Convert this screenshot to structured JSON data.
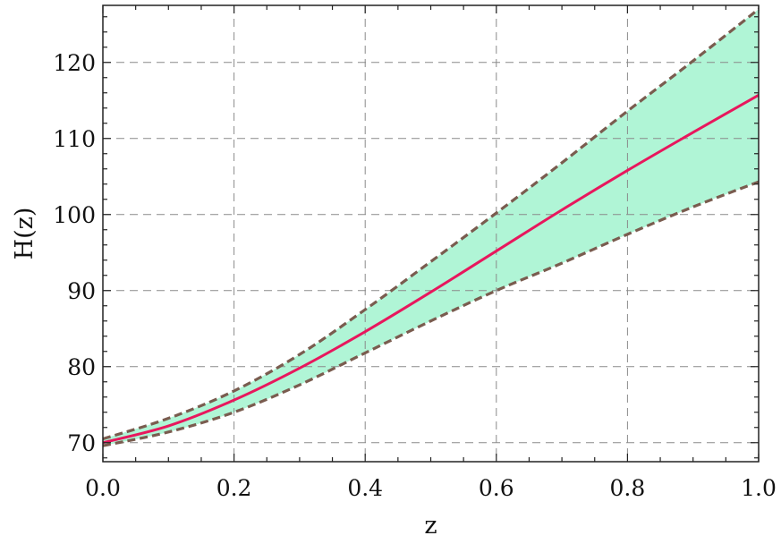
{
  "chart_data": {
    "type": "line",
    "title": "",
    "xlabel": "z",
    "ylabel": "H(z)",
    "xlim": [
      0.0,
      1.0
    ],
    "ylim": [
      67.5,
      127.5
    ],
    "xticks": [
      0.0,
      0.2,
      0.4,
      0.6,
      0.8,
      1.0
    ],
    "xtick_labels": [
      "0.0",
      "0.2",
      "0.4",
      "0.6",
      "0.8",
      "1.0"
    ],
    "yticks": [
      70,
      80,
      90,
      100,
      110,
      120
    ],
    "ytick_labels": [
      "70",
      "80",
      "90",
      "100",
      "110",
      "120"
    ],
    "grid": true,
    "legend": "none",
    "x": [
      0.0,
      0.1,
      0.2,
      0.3,
      0.4,
      0.5,
      0.6,
      0.7,
      0.8,
      0.9,
      1.0
    ],
    "series": [
      {
        "role": "best-fit",
        "style": "solid",
        "color": "#e8175d",
        "values": [
          70.0,
          72.2,
          75.6,
          79.8,
          84.6,
          89.8,
          95.2,
          100.6,
          105.8,
          110.8,
          115.7
        ]
      },
      {
        "role": "upper-bound",
        "style": "dashed",
        "color": "#7a5c4f",
        "values": [
          70.5,
          73.2,
          76.8,
          81.6,
          87.5,
          93.8,
          100.2,
          106.8,
          113.6,
          120.2,
          127.0
        ]
      },
      {
        "role": "lower-bound",
        "style": "dashed",
        "color": "#7a5c4f",
        "values": [
          69.6,
          71.4,
          74.0,
          77.6,
          81.8,
          86.0,
          90.0,
          93.6,
          97.4,
          101.0,
          104.3
        ]
      }
    ],
    "band_fill_color": "#b0f5d6",
    "grid_color": "#8a8a8a",
    "axis_color": "#222222"
  }
}
